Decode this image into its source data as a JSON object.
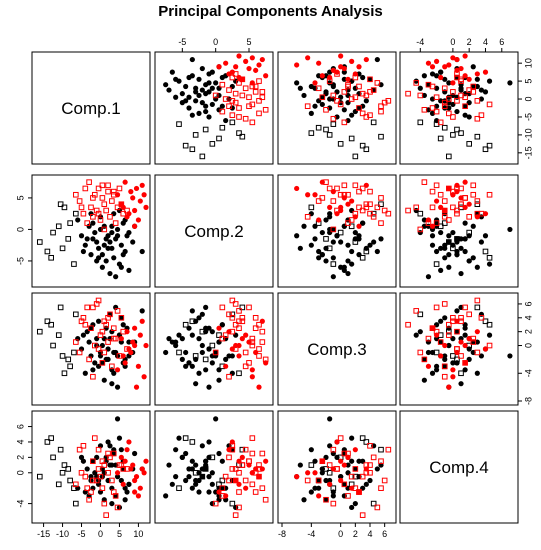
{
  "chart_data": {
    "type": "scatter",
    "title": "Principal Components Analysis",
    "variables": [
      "Comp.1",
      "Comp.2",
      "Comp.3",
      "Comp.4"
    ],
    "ranges": [
      [
        -17,
        12
      ],
      [
        -8.5,
        8
      ],
      [
        -8,
        7
      ],
      [
        -6,
        7.5
      ]
    ],
    "ticks": [
      [
        -15,
        -10,
        -5,
        0,
        5,
        10
      ],
      [
        -5,
        0,
        5
      ],
      [
        -8,
        -4,
        0,
        2,
        4,
        6
      ],
      [
        -4,
        0,
        2,
        4,
        6
      ]
    ],
    "series": [
      {
        "name": "",
        "color": "#000000",
        "marker": "filled-circle",
        "points": [
          [
            0.5,
            -4.0,
            -2.5,
            0.5
          ],
          [
            -6.0,
            1.5,
            1.0,
            -2.0
          ],
          [
            -2.0,
            -1.5,
            -3.5,
            1.5
          ],
          [
            3.5,
            -4.5,
            -1.0,
            2.5
          ],
          [
            7.5,
            -6.5,
            0.5,
            -1.5
          ],
          [
            4.0,
            -1.5,
            5.5,
            1.0
          ],
          [
            -1.0,
            -2.0,
            0.0,
            -0.5
          ],
          [
            2.0,
            -3.0,
            -2.0,
            -1.0
          ],
          [
            6.0,
            1.0,
            3.0,
            1.5
          ],
          [
            0.0,
            2.0,
            -1.5,
            3.5
          ],
          [
            -4.0,
            -2.5,
            -4.0,
            -2.5
          ],
          [
            5.0,
            -5.5,
            1.5,
            4.5
          ],
          [
            1.0,
            0.5,
            -5.0,
            -3.5
          ],
          [
            -2.5,
            -4.0,
            2.5,
            -0.5
          ],
          [
            8.5,
            -2.0,
            -1.0,
            0.5
          ],
          [
            3.0,
            -0.5,
            2.0,
            -4.0
          ],
          [
            -5.0,
            -1.0,
            -0.5,
            2.0
          ],
          [
            6.5,
            -3.5,
            -3.0,
            -2.0
          ],
          [
            2.5,
            -7.0,
            1.0,
            1.0
          ],
          [
            -0.5,
            -3.0,
            3.5,
            -1.5
          ],
          [
            4.5,
            0.0,
            -1.5,
            7.0
          ],
          [
            -3.0,
            0.5,
            0.5,
            -3.0
          ],
          [
            1.5,
            -5.0,
            -2.0,
            2.0
          ],
          [
            5.5,
            -2.5,
            4.0,
            -1.0
          ],
          [
            -1.5,
            -0.5,
            -2.5,
            0.0
          ],
          [
            7.0,
            -1.0,
            2.5,
            -2.5
          ],
          [
            3.5,
            2.5,
            -4.0,
            3.0
          ],
          [
            0.5,
            -6.0,
            0.0,
            -0.5
          ],
          [
            -4.5,
            -3.5,
            1.5,
            1.5
          ],
          [
            2.0,
            -1.0,
            -0.5,
            4.0
          ],
          [
            6.0,
            -4.0,
            -2.5,
            0.5
          ],
          [
            -2.0,
            1.0,
            3.0,
            -2.0
          ],
          [
            4.0,
            -7.5,
            -1.0,
            -3.0
          ],
          [
            1.0,
            -2.5,
            1.0,
            0.0
          ],
          [
            9.0,
            0.5,
            0.5,
            2.5
          ],
          [
            -0.5,
            -4.5,
            -3.0,
            -1.0
          ],
          [
            5.0,
            3.0,
            1.5,
            -4.5
          ],
          [
            3.0,
            -3.0,
            -5.5,
            1.0
          ],
          [
            -3.5,
            -1.5,
            2.0,
            0.5
          ],
          [
            7.5,
            -0.5,
            -1.5,
            -1.5
          ],
          [
            2.5,
            -2.0,
            4.5,
            3.5
          ],
          [
            0.0,
            0.0,
            -1.0,
            -2.5
          ],
          [
            11.0,
            -3.5,
            5.0,
            0.5
          ],
          [
            4.5,
            -1.0,
            -6.0,
            -0.5
          ],
          [
            -1.0,
            -5.0,
            1.0,
            2.0
          ],
          [
            6.5,
            1.5,
            -2.0,
            -3.5
          ],
          [
            1.5,
            -1.5,
            2.5,
            1.5
          ],
          [
            -2.5,
            2.5,
            -1.5,
            -1.0
          ],
          [
            5.5,
            -6.0,
            0.5,
            3.0
          ],
          [
            3.0,
            0.5,
            -3.5,
            -2.0
          ]
        ]
      },
      {
        "name": "",
        "color": "#000000",
        "marker": "open-square",
        "points": [
          [
            -11.0,
            0.5,
            1.5,
            -1.5
          ],
          [
            -14.0,
            -3.5,
            3.5,
            4.0
          ],
          [
            -8.5,
            -1.5,
            -2.0,
            0.5
          ],
          [
            -10.5,
            4.0,
            5.5,
            3.0
          ],
          [
            -7.0,
            -5.5,
            -1.0,
            -2.0
          ],
          [
            -9.5,
            3.5,
            -4.0,
            1.0
          ],
          [
            -16.0,
            -2.0,
            2.0,
            -0.5
          ],
          [
            -12.5,
            -0.5,
            0.0,
            2.0
          ],
          [
            -6.5,
            2.5,
            4.5,
            -4.0
          ],
          [
            -10.0,
            -3.0,
            -1.5,
            0.0
          ],
          [
            -13.0,
            -4.5,
            3.0,
            4.5
          ],
          [
            -8.0,
            1.0,
            -3.0,
            -1.0
          ]
        ]
      },
      {
        "name": "",
        "color": "#ff0000",
        "marker": "filled-circle",
        "points": [
          [
            8.0,
            6.0,
            -1.0,
            0.5
          ],
          [
            10.5,
            4.5,
            1.5,
            -2.0
          ],
          [
            6.5,
            7.5,
            -2.5,
            1.5
          ],
          [
            9.0,
            3.0,
            0.0,
            -1.0
          ],
          [
            11.5,
            5.5,
            -4.5,
            0.0
          ],
          [
            7.0,
            2.0,
            2.0,
            3.0
          ],
          [
            9.5,
            6.5,
            -6.0,
            -0.5
          ],
          [
            5.5,
            4.0,
            1.0,
            2.0
          ],
          [
            10.0,
            1.5,
            -3.0,
            -3.0
          ],
          [
            8.5,
            5.0,
            0.5,
            1.0
          ],
          [
            6.0,
            3.5,
            -1.5,
            -1.5
          ],
          [
            11.0,
            7.0,
            3.5,
            0.5
          ],
          [
            7.5,
            2.5,
            -0.5,
            4.0
          ],
          [
            9.0,
            0.5,
            2.5,
            -2.5
          ],
          [
            4.5,
            5.5,
            -3.5,
            0.0
          ],
          [
            12.0,
            3.5,
            0.0,
            1.5
          ]
        ]
      },
      {
        "name": "",
        "color": "#ff0000",
        "marker": "open-square",
        "points": [
          [
            -4.0,
            6.5,
            3.0,
            -0.5
          ],
          [
            -2.0,
            5.0,
            5.5,
            1.5
          ],
          [
            0.5,
            7.0,
            2.0,
            -2.0
          ],
          [
            -5.5,
            4.5,
            -1.0,
            3.0
          ],
          [
            2.0,
            6.0,
            4.0,
            0.0
          ],
          [
            -1.0,
            3.0,
            6.0,
            -1.0
          ],
          [
            3.5,
            5.5,
            1.0,
            2.5
          ],
          [
            -3.0,
            7.5,
            -2.0,
            -3.5
          ],
          [
            1.0,
            4.0,
            3.5,
            1.0
          ],
          [
            -6.5,
            5.5,
            0.5,
            -1.5
          ],
          [
            4.5,
            3.5,
            5.0,
            -4.5
          ],
          [
            -0.5,
            6.5,
            -0.5,
            0.5
          ],
          [
            2.5,
            2.0,
            4.5,
            2.0
          ],
          [
            -2.5,
            3.5,
            2.5,
            -2.5
          ],
          [
            5.0,
            6.5,
            -1.5,
            1.0
          ],
          [
            0.0,
            1.5,
            1.5,
            -0.5
          ],
          [
            -4.5,
            2.5,
            4.0,
            3.5
          ],
          [
            3.0,
            4.5,
            -3.0,
            -1.0
          ],
          [
            -1.5,
            5.5,
            0.0,
            4.5
          ],
          [
            1.5,
            3.0,
            3.0,
            -5.5
          ],
          [
            6.0,
            2.5,
            2.0,
            0.5
          ],
          [
            -3.5,
            1.0,
            5.5,
            -2.0
          ],
          [
            0.5,
            5.0,
            -2.5,
            1.5
          ],
          [
            4.0,
            1.0,
            1.0,
            -3.0
          ],
          [
            -5.0,
            3.5,
            3.5,
            0.0
          ],
          [
            2.0,
            7.0,
            0.5,
            2.5
          ],
          [
            -2.0,
            2.0,
            -4.5,
            -1.0
          ],
          [
            5.5,
            4.0,
            4.0,
            1.0
          ],
          [
            1.0,
            0.0,
            -1.0,
            -4.0
          ],
          [
            -0.5,
            2.5,
            6.5,
            3.0
          ],
          [
            3.5,
            6.0,
            2.5,
            -2.5
          ],
          [
            7.0,
            3.0,
            -0.5,
            0.5
          ]
        ]
      }
    ]
  }
}
